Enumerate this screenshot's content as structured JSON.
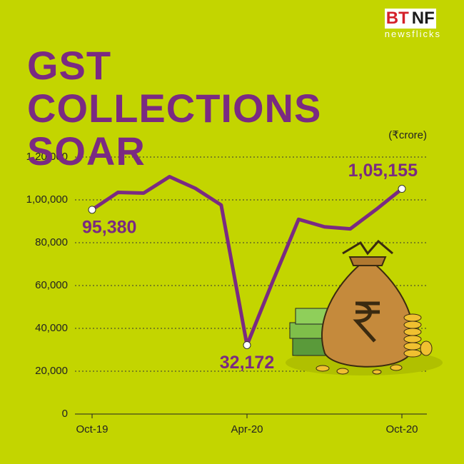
{
  "brand": {
    "left": "BT",
    "right": "NF",
    "tagline": "newsflicks"
  },
  "chart_data": {
    "type": "line",
    "title": "GST COLLECTIONS SOAR",
    "unit": "(₹crore)",
    "categories": [
      "Oct-19",
      null,
      null,
      null,
      null,
      null,
      "Apr-20",
      null,
      null,
      null,
      null,
      null,
      "Oct-20"
    ],
    "series": [
      {
        "name": "GST collections",
        "color": "#7a2a82",
        "values": [
          95380,
          103492,
          103184,
          110828,
          105366,
          97597,
          32172,
          62009,
          90917,
          87422,
          86449,
          95480,
          105155
        ],
        "value_labels": [
          "95,380",
          null,
          null,
          null,
          null,
          null,
          "32,172",
          null,
          null,
          null,
          null,
          null,
          "1,05,155"
        ]
      }
    ],
    "ylim": [
      0,
      120000
    ],
    "yticks": [
      0,
      {
        "value": 20000,
        "label": "20,000"
      },
      {
        "value": 40000,
        "label": "40,000"
      },
      {
        "value": 60000,
        "label": "60,000"
      },
      {
        "value": 80000,
        "label": "80,000"
      },
      {
        "value": 100000,
        "label": "1,00,000"
      },
      {
        "value": 120000,
        "label": "1,20,000"
      }
    ],
    "grid": true
  }
}
